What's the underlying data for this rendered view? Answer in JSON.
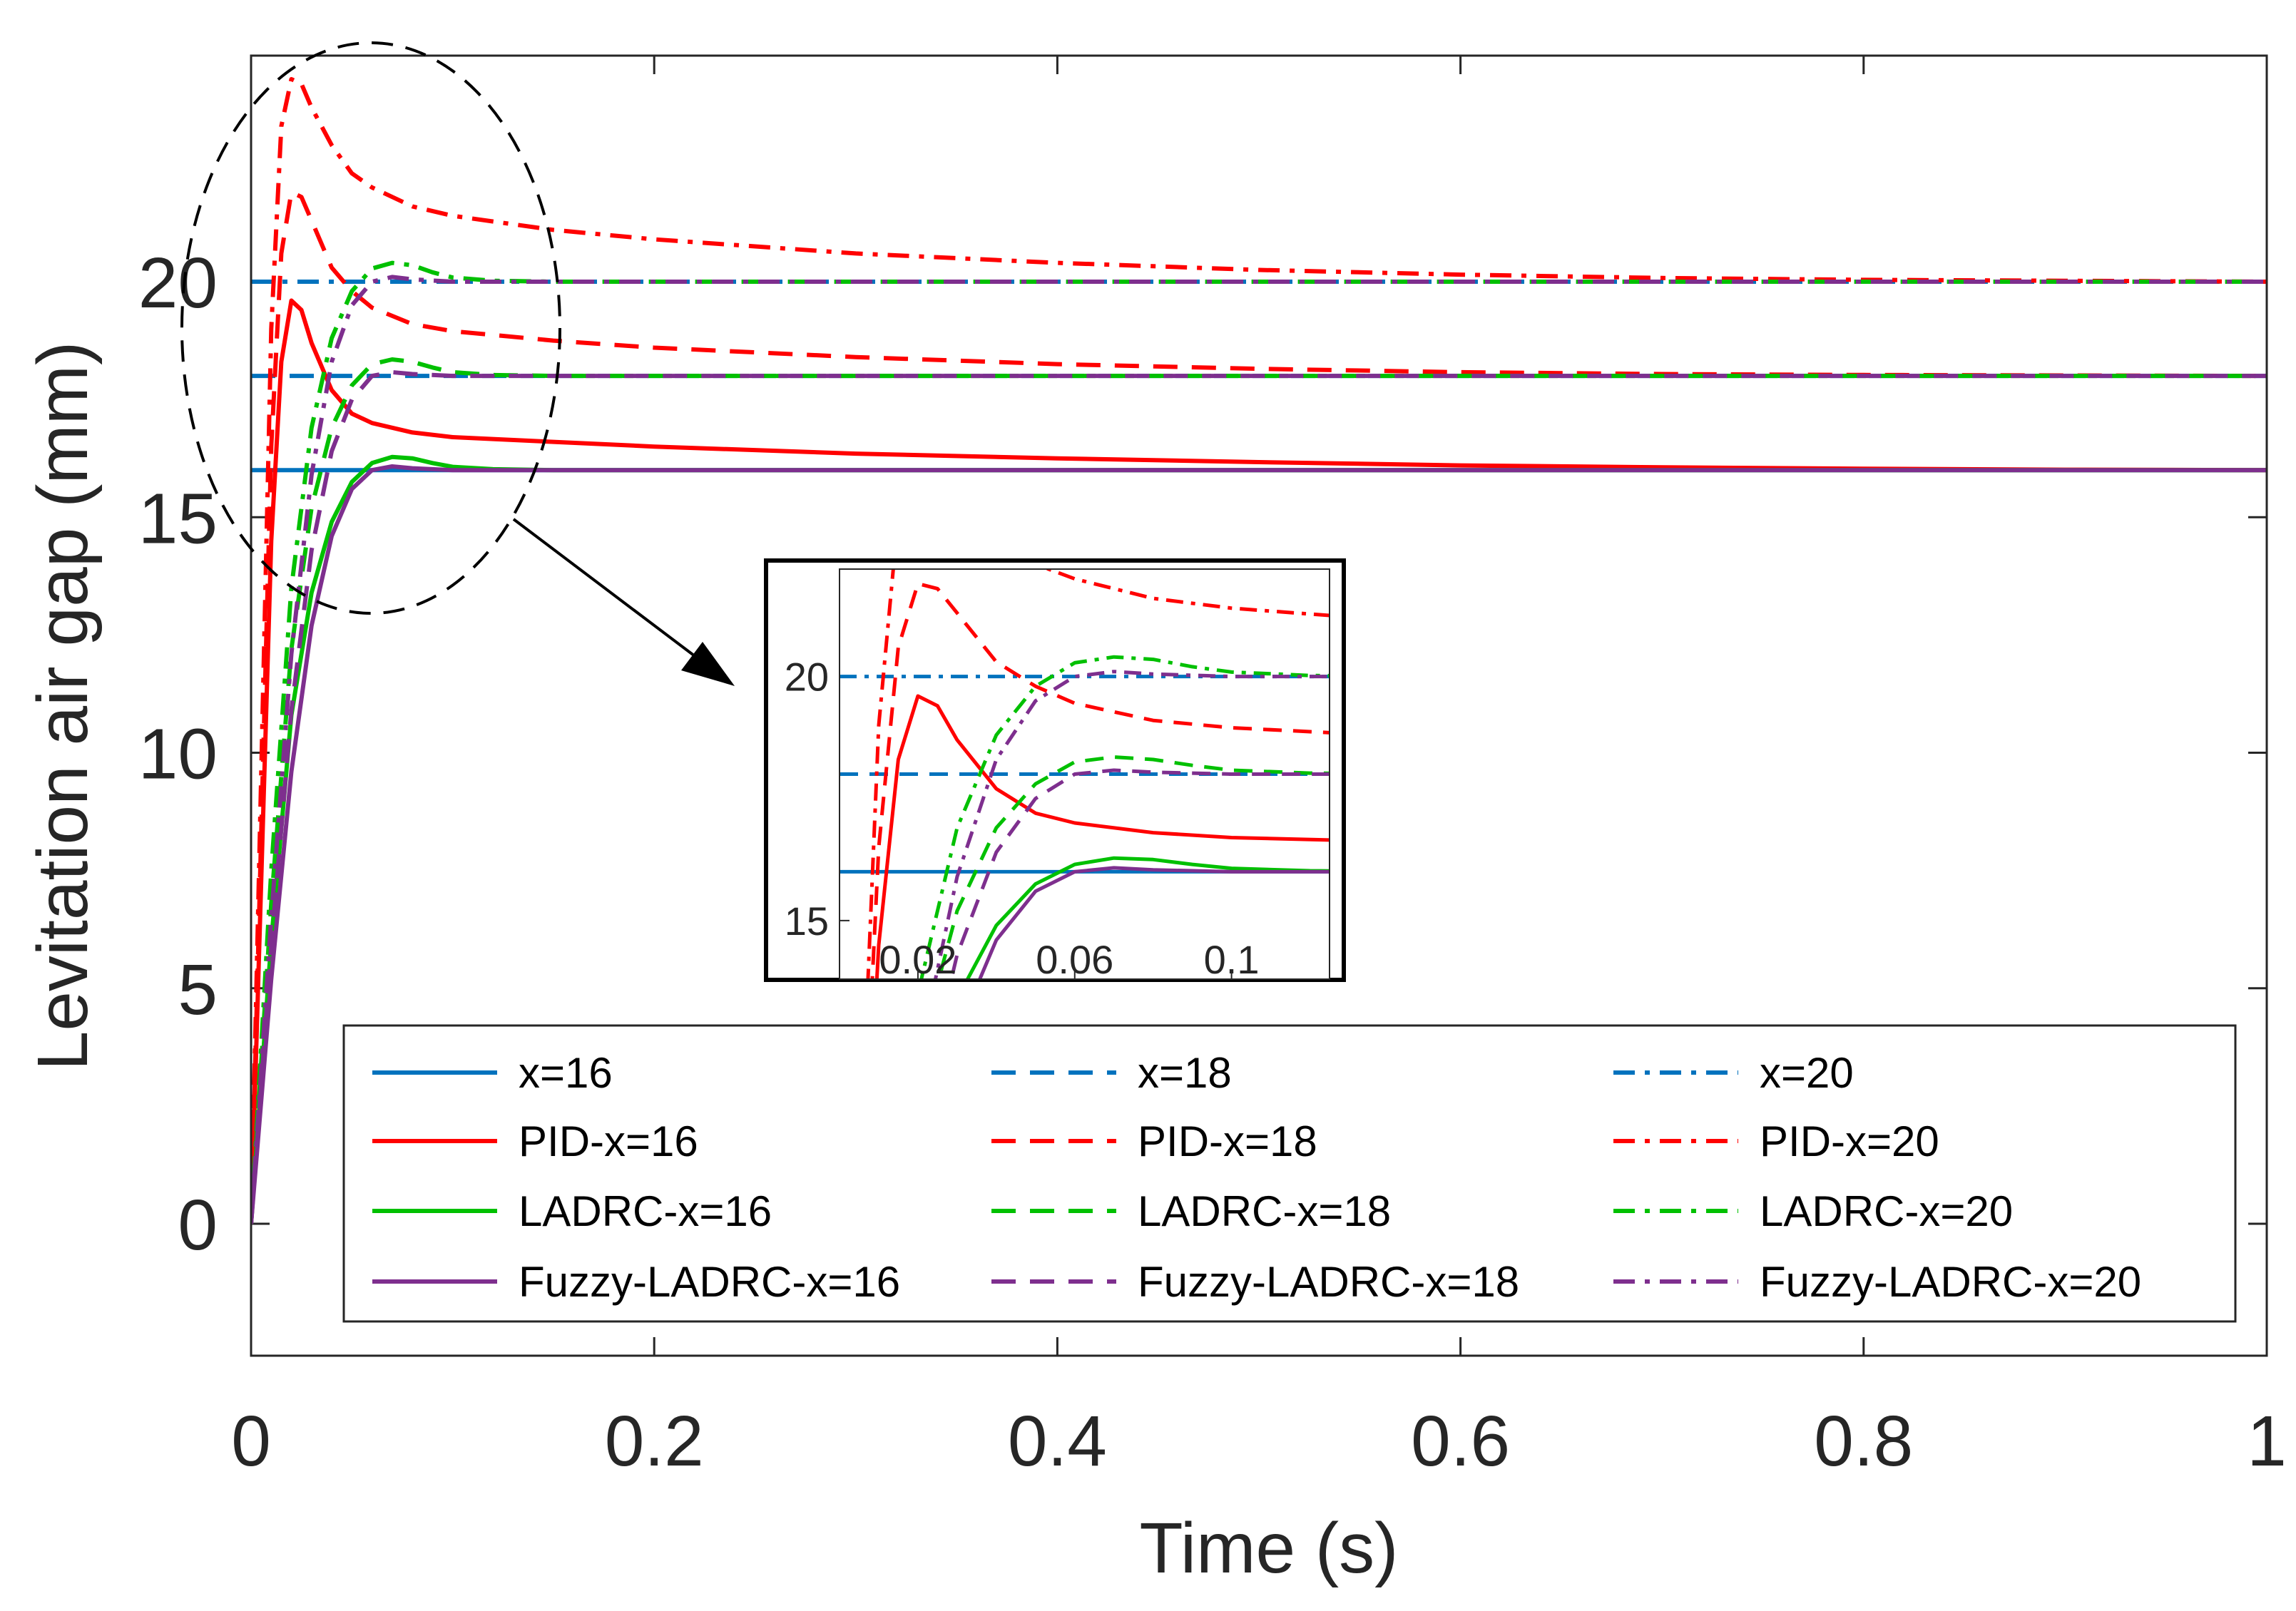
{
  "chart_data": {
    "type": "line",
    "xlabel": "Time (s)",
    "ylabel": "Levitation air gap (mm)",
    "xlim": [
      0,
      1
    ],
    "ylim": [
      -2.8,
      24.8
    ],
    "xticks": [
      0,
      0.2,
      0.4,
      0.6,
      0.8,
      1
    ],
    "xtick_labels": [
      "0",
      "0.2",
      "0.4",
      "0.6",
      "0.8",
      "1"
    ],
    "yticks": [
      0,
      5,
      10,
      15,
      20
    ],
    "ytick_labels": [
      "0",
      "5",
      "10",
      "15",
      "20"
    ],
    "colors": {
      "blue": "#0072BD",
      "red": "#FF0000",
      "green": "#00C000",
      "purple": "#7E2F8E",
      "arrow": "#000000"
    },
    "series": [
      {
        "name": "x=16",
        "legend": "x=16",
        "color": "#0072BD",
        "dash": "solid",
        "kind": "ref",
        "ref": 16
      },
      {
        "name": "x=18",
        "legend": "x=18",
        "color": "#0072BD",
        "dash": "dashed",
        "kind": "ref",
        "ref": 18
      },
      {
        "name": "x=20",
        "legend": "x=20",
        "color": "#0072BD",
        "dash": "dashdot",
        "kind": "ref",
        "ref": 20
      },
      {
        "name": "PID-x=16",
        "legend": "PID-x=16",
        "color": "#FF0000",
        "dash": "solid",
        "kind": "pid",
        "ref": 16,
        "points": [
          [
            0,
            0
          ],
          [
            0.01,
            14.5
          ],
          [
            0.015,
            18.3
          ],
          [
            0.02,
            19.6
          ],
          [
            0.025,
            19.4
          ],
          [
            0.03,
            18.7
          ],
          [
            0.04,
            17.7
          ],
          [
            0.05,
            17.2
          ],
          [
            0.06,
            17.0
          ],
          [
            0.08,
            16.8
          ],
          [
            0.1,
            16.7
          ],
          [
            0.15,
            16.6
          ],
          [
            0.2,
            16.5
          ],
          [
            0.3,
            16.35
          ],
          [
            0.4,
            16.25
          ],
          [
            0.5,
            16.17
          ],
          [
            0.6,
            16.1
          ],
          [
            0.7,
            16.06
          ],
          [
            0.8,
            16.03
          ],
          [
            0.9,
            16.01
          ],
          [
            1.0,
            16.0
          ]
        ]
      },
      {
        "name": "PID-x=18",
        "legend": "PID-x=18",
        "color": "#FF0000",
        "dash": "dashed",
        "kind": "pid",
        "ref": 18,
        "points": [
          [
            0,
            0
          ],
          [
            0.01,
            16.5
          ],
          [
            0.015,
            20.6
          ],
          [
            0.02,
            21.9
          ],
          [
            0.025,
            21.8
          ],
          [
            0.03,
            21.3
          ],
          [
            0.04,
            20.3
          ],
          [
            0.05,
            19.8
          ],
          [
            0.06,
            19.45
          ],
          [
            0.08,
            19.1
          ],
          [
            0.1,
            18.95
          ],
          [
            0.15,
            18.75
          ],
          [
            0.2,
            18.6
          ],
          [
            0.3,
            18.4
          ],
          [
            0.4,
            18.25
          ],
          [
            0.5,
            18.15
          ],
          [
            0.6,
            18.08
          ],
          [
            0.7,
            18.04
          ],
          [
            0.8,
            18.02
          ],
          [
            0.9,
            18.01
          ],
          [
            1.0,
            18.0
          ]
        ]
      },
      {
        "name": "PID-x=20",
        "legend": "PID-x=20",
        "color": "#FF0000",
        "dash": "dashdot",
        "kind": "pid",
        "ref": 20,
        "points": [
          [
            0,
            0
          ],
          [
            0.01,
            19.0
          ],
          [
            0.015,
            23.3
          ],
          [
            0.02,
            24.3
          ],
          [
            0.025,
            24.2
          ],
          [
            0.03,
            23.7
          ],
          [
            0.04,
            22.9
          ],
          [
            0.05,
            22.3
          ],
          [
            0.06,
            22.0
          ],
          [
            0.08,
            21.6
          ],
          [
            0.1,
            21.4
          ],
          [
            0.15,
            21.1
          ],
          [
            0.2,
            20.9
          ],
          [
            0.3,
            20.6
          ],
          [
            0.4,
            20.4
          ],
          [
            0.5,
            20.25
          ],
          [
            0.6,
            20.15
          ],
          [
            0.7,
            20.08
          ],
          [
            0.8,
            20.04
          ],
          [
            0.9,
            20.02
          ],
          [
            1.0,
            20.0
          ]
        ]
      },
      {
        "name": "LADRC-x=16",
        "legend": "LADRC-x=16",
        "color": "#00C000",
        "dash": "solid",
        "kind": "ladrc",
        "ref": 16,
        "points": [
          [
            0,
            0
          ],
          [
            0.01,
            6.0
          ],
          [
            0.02,
            10.8
          ],
          [
            0.03,
            13.4
          ],
          [
            0.04,
            14.9
          ],
          [
            0.05,
            15.75
          ],
          [
            0.06,
            16.15
          ],
          [
            0.07,
            16.28
          ],
          [
            0.08,
            16.25
          ],
          [
            0.09,
            16.15
          ],
          [
            0.1,
            16.07
          ],
          [
            0.12,
            16.02
          ],
          [
            0.15,
            16.0
          ],
          [
            1.0,
            16.0
          ]
        ]
      },
      {
        "name": "LADRC-x=18",
        "legend": "LADRC-x=18",
        "color": "#00C000",
        "dash": "dashed",
        "kind": "ladrc",
        "ref": 18,
        "points": [
          [
            0,
            0
          ],
          [
            0.01,
            6.8
          ],
          [
            0.02,
            12.2
          ],
          [
            0.03,
            15.2
          ],
          [
            0.04,
            16.9
          ],
          [
            0.05,
            17.8
          ],
          [
            0.06,
            18.25
          ],
          [
            0.07,
            18.35
          ],
          [
            0.08,
            18.3
          ],
          [
            0.09,
            18.18
          ],
          [
            0.1,
            18.08
          ],
          [
            0.12,
            18.02
          ],
          [
            0.15,
            18.0
          ],
          [
            1.0,
            18.0
          ]
        ]
      },
      {
        "name": "LADRC-x=20",
        "legend": "LADRC-x=20",
        "color": "#00C000",
        "dash": "dashdot",
        "kind": "ladrc",
        "ref": 20,
        "points": [
          [
            0,
            0
          ],
          [
            0.01,
            7.5
          ],
          [
            0.02,
            13.5
          ],
          [
            0.03,
            16.9
          ],
          [
            0.04,
            18.8
          ],
          [
            0.05,
            19.8
          ],
          [
            0.06,
            20.28
          ],
          [
            0.07,
            20.4
          ],
          [
            0.08,
            20.35
          ],
          [
            0.09,
            20.2
          ],
          [
            0.1,
            20.09
          ],
          [
            0.12,
            20.02
          ],
          [
            0.15,
            20.0
          ],
          [
            1.0,
            20.0
          ]
        ]
      },
      {
        "name": "Fuzzy-LADRC-x=16",
        "legend": "Fuzzy-LADRC-x=16",
        "color": "#7E2F8E",
        "dash": "solid",
        "kind": "fuzzy",
        "ref": 16,
        "points": [
          [
            0,
            0
          ],
          [
            0.01,
            5.2
          ],
          [
            0.02,
            9.6
          ],
          [
            0.03,
            12.7
          ],
          [
            0.04,
            14.6
          ],
          [
            0.05,
            15.6
          ],
          [
            0.06,
            16.0
          ],
          [
            0.07,
            16.08
          ],
          [
            0.08,
            16.04
          ],
          [
            0.1,
            16.0
          ],
          [
            1.0,
            16.0
          ]
        ]
      },
      {
        "name": "Fuzzy-LADRC-x=18",
        "legend": "Fuzzy-LADRC-x=18",
        "color": "#7E2F8E",
        "dash": "dashed",
        "kind": "fuzzy",
        "ref": 18,
        "points": [
          [
            0,
            0
          ],
          [
            0.01,
            5.9
          ],
          [
            0.02,
            10.9
          ],
          [
            0.03,
            14.3
          ],
          [
            0.04,
            16.4
          ],
          [
            0.05,
            17.5
          ],
          [
            0.06,
            18.0
          ],
          [
            0.07,
            18.08
          ],
          [
            0.08,
            18.04
          ],
          [
            0.1,
            18.0
          ],
          [
            1.0,
            18.0
          ]
        ]
      },
      {
        "name": "Fuzzy-LADRC-x=20",
        "legend": "Fuzzy-LADRC-x=20",
        "color": "#7E2F8E",
        "dash": "dashdot",
        "kind": "fuzzy",
        "ref": 20,
        "points": [
          [
            0,
            0
          ],
          [
            0.01,
            6.5
          ],
          [
            0.02,
            12.1
          ],
          [
            0.03,
            15.9
          ],
          [
            0.04,
            18.3
          ],
          [
            0.05,
            19.5
          ],
          [
            0.06,
            20.0
          ],
          [
            0.07,
            20.1
          ],
          [
            0.08,
            20.05
          ],
          [
            0.1,
            20.0
          ],
          [
            1.0,
            20.0
          ]
        ]
      }
    ],
    "inset": {
      "xlim": [
        0,
        0.125
      ],
      "ylim": [
        13.8,
        22.2
      ],
      "xticks": [
        0.02,
        0.06,
        0.1
      ],
      "xtick_labels": [
        "0.02",
        "0.06",
        "0.1"
      ],
      "yticks": [
        15,
        20
      ],
      "ytick_labels": [
        "15",
        "20"
      ]
    },
    "legend_location": "lower-right",
    "legend_columns": 3
  }
}
